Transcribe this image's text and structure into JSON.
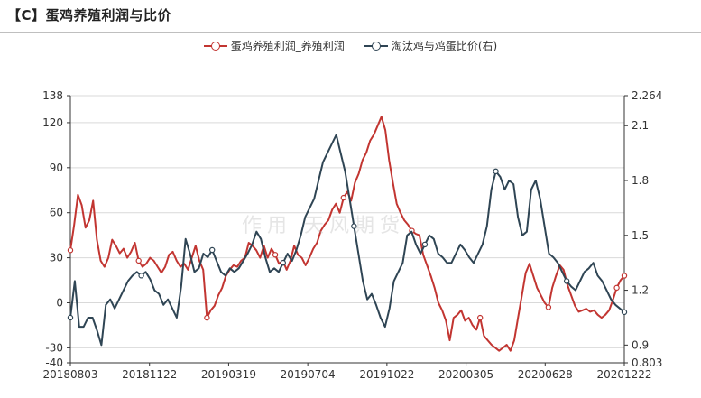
{
  "header": {
    "title": "【C】蛋鸡养殖利润与比价"
  },
  "watermark": "作用 天风期货",
  "chart_data": {
    "type": "line",
    "title": "【C】蛋鸡养殖利润与比价",
    "grid": {
      "horizontal": true,
      "vertical": false
    },
    "legend_position": "top-center",
    "x_tick_labels": [
      "20180803",
      "20181122",
      "20190319",
      "20190704",
      "20191022",
      "20200305",
      "20200628",
      "20201222"
    ],
    "y_left": {
      "min": -40,
      "max": 138,
      "ticks": [
        -40,
        -30,
        0,
        30,
        60,
        90,
        120,
        138
      ]
    },
    "y_right": {
      "min": 0.803,
      "max": 2.264,
      "ticks": [
        0.803,
        0.9,
        1.2,
        1.5,
        1.8,
        2.1,
        2.264
      ]
    },
    "series": [
      {
        "name": "蛋鸡养殖利润_养殖利润",
        "axis": "left",
        "color": "#c23531",
        "values": [
          35,
          52,
          72,
          65,
          50,
          55,
          68,
          42,
          28,
          24,
          30,
          42,
          38,
          33,
          36,
          30,
          34,
          40,
          28,
          24,
          26,
          30,
          28,
          24,
          20,
          24,
          32,
          34,
          28,
          24,
          26,
          22,
          30,
          38,
          28,
          22,
          -10,
          -5,
          -2,
          5,
          10,
          18,
          22,
          25,
          24,
          28,
          30,
          40,
          38,
          35,
          30,
          38,
          30,
          36,
          32,
          26,
          28,
          22,
          28,
          38,
          32,
          30,
          25,
          30,
          36,
          40,
          48,
          52,
          55,
          62,
          66,
          60,
          70,
          74,
          68,
          80,
          86,
          95,
          100,
          108,
          112,
          118,
          124,
          115,
          95,
          80,
          66,
          60,
          55,
          52,
          48,
          46,
          45,
          32,
          25,
          18,
          10,
          0,
          -5,
          -12,
          -25,
          -10,
          -8,
          -5,
          -12,
          -10,
          -15,
          -18,
          -10,
          -22,
          -25,
          -28,
          -30,
          -32,
          -30,
          -28,
          -32,
          -25,
          -10,
          5,
          20,
          26,
          18,
          10,
          5,
          0,
          -3,
          10,
          18,
          25,
          22,
          12,
          5,
          -2,
          -6,
          -5,
          -4,
          -6,
          -5,
          -8,
          -10,
          -8,
          -5,
          2,
          10,
          15,
          18
        ]
      },
      {
        "name": "淘汰鸡与鸡蛋比价(右)",
        "axis": "right",
        "color": "#2f4554",
        "values": [
          1.05,
          1.25,
          1.0,
          1.0,
          1.05,
          1.05,
          0.98,
          0.9,
          1.12,
          1.15,
          1.1,
          1.15,
          1.2,
          1.25,
          1.28,
          1.3,
          1.28,
          1.3,
          1.26,
          1.2,
          1.18,
          1.12,
          1.15,
          1.1,
          1.05,
          1.22,
          1.48,
          1.4,
          1.3,
          1.32,
          1.4,
          1.38,
          1.42,
          1.36,
          1.3,
          1.28,
          1.32,
          1.3,
          1.32,
          1.36,
          1.4,
          1.45,
          1.52,
          1.48,
          1.38,
          1.3,
          1.32,
          1.3,
          1.35,
          1.4,
          1.36,
          1.42,
          1.5,
          1.6,
          1.65,
          1.7,
          1.8,
          1.9,
          1.95,
          2.0,
          2.05,
          1.95,
          1.85,
          1.7,
          1.55,
          1.4,
          1.25,
          1.15,
          1.18,
          1.12,
          1.05,
          1.0,
          1.1,
          1.25,
          1.3,
          1.35,
          1.5,
          1.52,
          1.45,
          1.4,
          1.45,
          1.5,
          1.48,
          1.4,
          1.38,
          1.35,
          1.35,
          1.4,
          1.45,
          1.42,
          1.38,
          1.35,
          1.4,
          1.45,
          1.55,
          1.75,
          1.85,
          1.82,
          1.75,
          1.8,
          1.78,
          1.6,
          1.5,
          1.52,
          1.75,
          1.8,
          1.7,
          1.55,
          1.4,
          1.38,
          1.35,
          1.3,
          1.25,
          1.22,
          1.2,
          1.25,
          1.3,
          1.32,
          1.35,
          1.28,
          1.25,
          1.2,
          1.15,
          1.12,
          1.1,
          1.08
        ]
      }
    ]
  }
}
